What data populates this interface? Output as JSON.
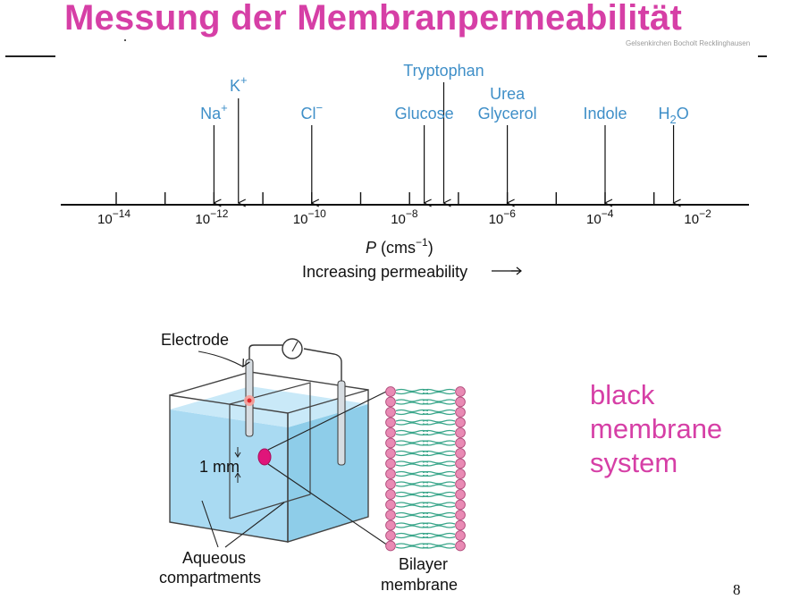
{
  "slide": {
    "title": "Messung der Membranpermeabilität",
    "institution": "Gelsenkirchen Bocholt Recklinghausen",
    "page_number": "8"
  },
  "permeability_scale": {
    "molecules": [
      {
        "id": "na",
        "base": "Na",
        "sup": "+",
        "sub": "",
        "exponent": -12.0
      },
      {
        "id": "k",
        "base": "K",
        "sup": "+",
        "sub": "",
        "exponent": -11.5
      },
      {
        "id": "cl",
        "base": "Cl",
        "sup": "−",
        "sub": "",
        "exponent": -10.0
      },
      {
        "id": "glucose",
        "base": "Glucose",
        "sup": "",
        "sub": "",
        "exponent": -7.7
      },
      {
        "id": "tryptophan",
        "base": "Tryptophan",
        "sup": "",
        "sub": "",
        "exponent": -7.3
      },
      {
        "id": "urea",
        "base": "Urea",
        "sup": "",
        "sub": "",
        "exponent": -6.0
      },
      {
        "id": "glycerol",
        "base": "Glycerol",
        "sup": "",
        "sub": "",
        "exponent": -6.0
      },
      {
        "id": "indole",
        "base": "Indole",
        "sup": "",
        "sub": "",
        "exponent": -4.0
      },
      {
        "id": "water",
        "base": "H",
        "sup": "",
        "sub": "2",
        "tail": "O",
        "exponent": -2.6
      }
    ],
    "ticks": [
      {
        "base": "10",
        "exp": "−14"
      },
      {
        "base": "10",
        "exp": "−12"
      },
      {
        "base": "10",
        "exp": "−10"
      },
      {
        "base": "10",
        "exp": "−8"
      },
      {
        "base": "10",
        "exp": "−6"
      },
      {
        "base": "10",
        "exp": "−4"
      },
      {
        "base": "10",
        "exp": "−2"
      }
    ],
    "axis_symbol": "P",
    "axis_unit_open": " (cms",
    "axis_unit_exp": "−1",
    "axis_unit_close": ")",
    "direction_label": "Increasing permeability"
  },
  "apparatus": {
    "electrode_label": "Electrode",
    "gap_label": "1 mm",
    "compartments_label_line1": "Aqueous",
    "compartments_label_line2": "compartments",
    "bilayer_label_line1": "Bilayer",
    "bilayer_label_line2": "membrane",
    "colors": {
      "water": "#9fd3ef",
      "water_dark": "#7fc1e6",
      "head_group": "#e98ab4",
      "tail": "#3aa68a",
      "accent": "#d63fa6"
    }
  },
  "annotation": {
    "line1": "black",
    "line2": "membrane",
    "line3": "system"
  }
}
